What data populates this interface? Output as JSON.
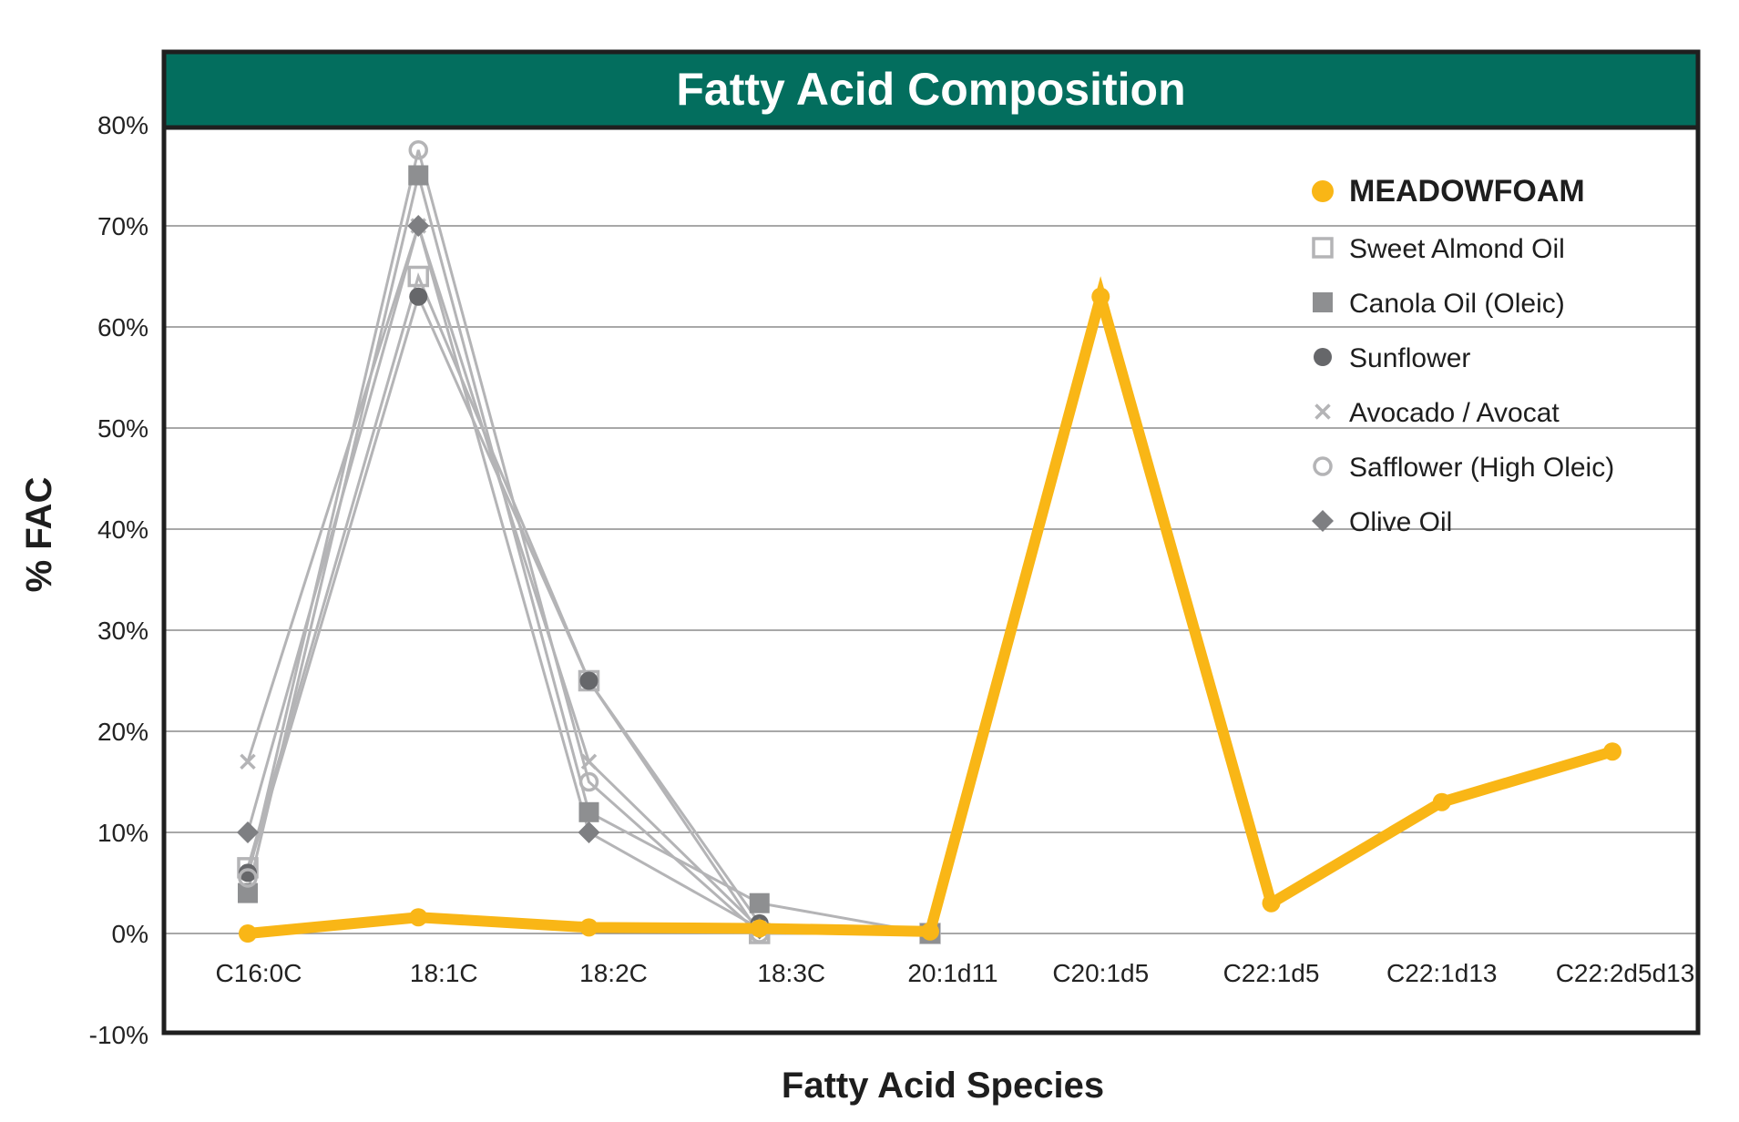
{
  "chart_data": {
    "type": "line",
    "title": "Fatty Acid Composition",
    "xlabel": "Fatty Acid Species",
    "ylabel": "% FAC",
    "ylim": [
      -10,
      80
    ],
    "yticks": [
      "80%",
      "70%",
      "60%",
      "50%",
      "40%",
      "30%",
      "20%",
      "10%",
      "0%",
      "-10%"
    ],
    "grid": true,
    "legend_position": "upper-right inside",
    "categories": [
      "C16:0C",
      "18:1C",
      "18:2C",
      "18:3C",
      "20:1d11",
      "C20:1d5",
      "C22:1d5",
      "C22:1d13",
      "C22:2d5d13"
    ],
    "series": [
      {
        "name": "MEADOWFOAM",
        "marker": "circle-filled",
        "color": "#F9B616",
        "values": [
          0,
          1.6,
          0.6,
          0.5,
          0.2,
          63,
          3,
          13,
          18
        ]
      },
      {
        "name": "Sweet Almond Oil",
        "marker": "square-open",
        "color": "#B4B4B6",
        "values": [
          6.5,
          65,
          25,
          0,
          0,
          null,
          null,
          null,
          null
        ]
      },
      {
        "name": "Canola Oil (Oleic)",
        "marker": "square-filled",
        "color": "#8E8F91",
        "values": [
          4,
          75,
          12,
          3,
          0,
          null,
          null,
          null,
          null
        ]
      },
      {
        "name": "Sunflower",
        "marker": "circle-filled",
        "color": "#66676A",
        "values": [
          6,
          63,
          25,
          1,
          null,
          null,
          null,
          null,
          null
        ]
      },
      {
        "name": "Avocado / Avocat",
        "marker": "x",
        "color": "#B4B4B6",
        "values": [
          17,
          70,
          17,
          0.5,
          null,
          null,
          null,
          null,
          null
        ]
      },
      {
        "name": "Safflower (High Oleic)",
        "marker": "circle-open",
        "color": "#B4B4B6",
        "values": [
          5.5,
          77.5,
          15,
          0,
          null,
          null,
          null,
          null,
          null
        ]
      },
      {
        "name": "Olive Oil",
        "marker": "diamond-filled",
        "color": "#7E7F82",
        "values": [
          10,
          70,
          10,
          0.5,
          null,
          null,
          null,
          null,
          null
        ]
      }
    ]
  },
  "colors": {
    "header_green": "#036E5E",
    "frame": "#1F1F1F",
    "grid": "#8C8C8C",
    "meadowfoam": "#F9B616",
    "other_lines": "#B4B4B6"
  }
}
